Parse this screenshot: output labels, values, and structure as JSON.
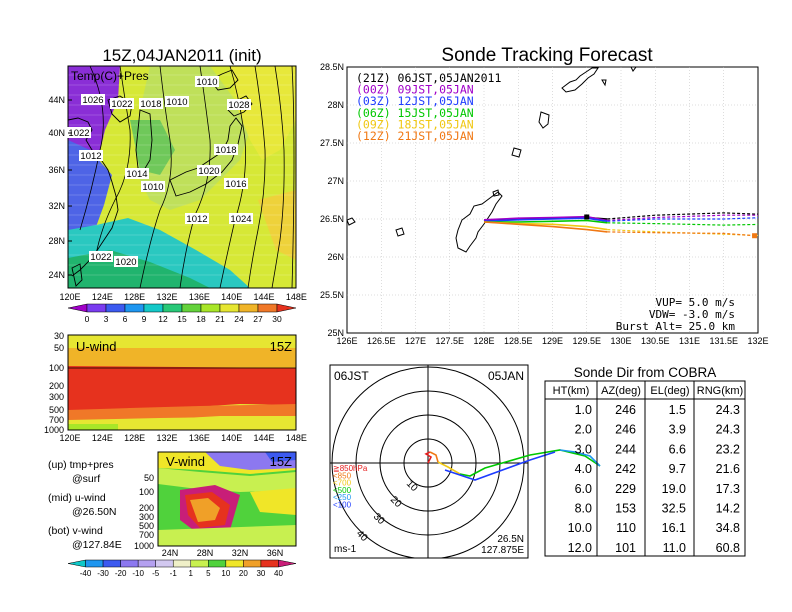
{
  "titles": {
    "init": "15Z,04JAN2011 (init)",
    "main": "Sonde Tracking Forecast",
    "sonde_dir": "Sonde Dir from COBRA"
  },
  "map_panel": {
    "label": "Temp(C)+Pres",
    "lat_ticks": [
      "44N",
      "40N",
      "36N",
      "32N",
      "28N",
      "24N"
    ],
    "lon_ticks": [
      "120E",
      "124E",
      "128E",
      "132E",
      "136E",
      "140E",
      "144E",
      "148E"
    ],
    "colorbar": [
      "0",
      "3",
      "6",
      "9",
      "12",
      "15",
      "18",
      "21",
      "24",
      "27",
      "30"
    ],
    "colorbar_colors": [
      "#a000c8",
      "#7a3cf0",
      "#3c5af0",
      "#1e96f0",
      "#14c8c8",
      "#28c878",
      "#64d23c",
      "#a8e628",
      "#e6e632",
      "#f0b428",
      "#f07828",
      "#e6321e"
    ],
    "isobars": [
      "1010",
      "1026",
      "1022",
      "1018",
      "1010",
      "1028",
      "1022",
      "1012",
      "1018",
      "1014",
      "1020",
      "1010",
      "1016",
      "1012",
      "1024",
      "1022",
      "1020"
    ]
  },
  "uwind_panel": {
    "label": "U-wind",
    "time": "15Z",
    "levels": [
      "30",
      "50",
      "100",
      "200",
      "300",
      "500",
      "700",
      "1000"
    ],
    "lon_ticks": [
      "120E",
      "124E",
      "128E",
      "132E",
      "136E",
      "140E",
      "144E",
      "148E"
    ]
  },
  "vwind_panel": {
    "label": "V-wind",
    "time": "15Z",
    "levels": [
      "50",
      "100",
      "200",
      "300",
      "500",
      "700",
      "1000"
    ],
    "lat_ticks": [
      "24N",
      "28N",
      "32N",
      "36N"
    ],
    "colorbar": [
      "-40",
      "-30",
      "-20",
      "-10",
      "-5",
      "-1",
      "1",
      "5",
      "10",
      "20",
      "30",
      "40"
    ],
    "colorbar_colors": [
      "#0ec8c8",
      "#1e96f0",
      "#3c5af0",
      "#8c78f0",
      "#b4a0f0",
      "#d2c8f0",
      "#f0f0c8",
      "#c8f050",
      "#50d23c",
      "#f0e628",
      "#f0a028",
      "#e6321e",
      "#c81e78"
    ]
  },
  "legend_left": {
    "up": "(up) tmp+pres",
    "up2": "@surf",
    "mid": "(mid) u-wind",
    "mid2": "@26.50N",
    "bot": "(bot) v-wind",
    "bot2": "@127.84E"
  },
  "track_panel": {
    "lat_ticks": [
      "28.5N",
      "28N",
      "27.5N",
      "27N",
      "26.5N",
      "26N",
      "25.5N",
      "25N"
    ],
    "lon_ticks": [
      "126E",
      "126.5E",
      "127E",
      "127.5E",
      "128E",
      "128.5E",
      "129E",
      "129.5E",
      "130E",
      "130.5E",
      "131E",
      "131.5E",
      "132E"
    ],
    "legend": [
      {
        "label": "(21Z)  06JST,05JAN2011",
        "color": "#000000"
      },
      {
        "label": "(00Z)  09JST,05JAN",
        "color": "#a000c8"
      },
      {
        "label": "(03Z)  12JST,05JAN",
        "color": "#1e3cff"
      },
      {
        "label": "(06Z)  15JST,05JAN",
        "color": "#00c800"
      },
      {
        "label": "(09Z)  18JST,05JAN",
        "color": "#f0c814"
      },
      {
        "label": "(12Z)  21JST,05JAN",
        "color": "#f07814"
      }
    ],
    "params": [
      "VUP=  5.0  m/s",
      "VDW= -3.0  m/s",
      "Burst Alt= 25.0  km"
    ]
  },
  "chart_data": [
    {
      "type": "line",
      "title": "Sonde Tracking Forecast",
      "xlabel": "",
      "ylabel": "",
      "xlim": [
        126,
        132
      ],
      "ylim": [
        25,
        28.5
      ],
      "series": [
        {
          "name": "(21Z)  06JST,05JAN2011",
          "x": [
            128,
            128.5,
            129,
            129.5,
            129.8,
            130.5,
            131.5,
            132.1
          ],
          "y": [
            26.48,
            26.5,
            26.51,
            26.52,
            26.5,
            26.55,
            26.58,
            26.56
          ]
        },
        {
          "name": "(00Z)  09JST,05JAN",
          "x": [
            128,
            128.5,
            129,
            129.5,
            129.8,
            130.5,
            131.5,
            132.1
          ],
          "y": [
            26.49,
            26.51,
            26.52,
            26.53,
            26.48,
            26.52,
            26.55,
            26.55
          ]
        },
        {
          "name": "(03Z)  12JST,05JAN",
          "x": [
            128,
            128.5,
            129,
            129.5,
            129.8,
            130.5,
            131.5,
            132.1
          ],
          "y": [
            26.47,
            26.49,
            26.5,
            26.51,
            26.47,
            26.5,
            26.5,
            26.52
          ]
        },
        {
          "name": "(06Z)  15JST,05JAN",
          "x": [
            128,
            128.5,
            129,
            129.5,
            129.8,
            130.5,
            131.5,
            132.1
          ],
          "y": [
            26.46,
            26.46,
            26.47,
            26.48,
            26.45,
            26.44,
            26.42,
            26.43
          ]
        },
        {
          "name": "(09Z)  18JST,05JAN",
          "x": [
            128,
            128.5,
            129,
            129.5,
            129.8,
            130.5,
            131.5,
            132.1
          ],
          "y": [
            26.46,
            26.44,
            26.43,
            26.4,
            26.36,
            26.33,
            26.3,
            26.28
          ]
        },
        {
          "name": "(12Z)  21JST,05JAN",
          "x": [
            128,
            128.5,
            129,
            129.5,
            129.8,
            130.5,
            131.5,
            131.95
          ],
          "y": [
            26.46,
            26.43,
            26.4,
            26.36,
            26.33,
            26.32,
            26.31,
            26.28
          ]
        }
      ]
    },
    {
      "type": "table",
      "title": "Sonde Dir from COBRA",
      "columns": [
        "HT(km)",
        "AZ(deg)",
        "EL(deg)",
        "RNG(km)"
      ],
      "rows": [
        [
          "1.0",
          "246",
          "1.5",
          "24.3"
        ],
        [
          "2.0",
          "246",
          "3.9",
          "24.3"
        ],
        [
          "3.0",
          "244",
          "6.6",
          "23.2"
        ],
        [
          "4.0",
          "242",
          "9.7",
          "21.6"
        ],
        [
          "6.0",
          "229",
          "19.0",
          "17.3"
        ],
        [
          "8.0",
          "153",
          "32.5",
          "14.2"
        ],
        [
          "10.0",
          "110",
          "16.1",
          "34.8"
        ],
        [
          "12.0",
          "101",
          "11.0",
          "60.8"
        ]
      ]
    }
  ],
  "polar_panel": {
    "time_left": "06JST",
    "time_right": "05JAN",
    "ring_labels": [
      "10",
      "20",
      "30",
      "40"
    ],
    "levels": [
      "≧850hPa",
      "<850",
      "<700",
      "<500",
      "<250",
      "<100"
    ],
    "level_colors": [
      "#e61e1e",
      "#f07814",
      "#f0c814",
      "#00c800",
      "#1e96f0",
      "#1e3cff"
    ],
    "unit": "ms-1",
    "lat": "26.5N",
    "lon": "127.875E"
  }
}
